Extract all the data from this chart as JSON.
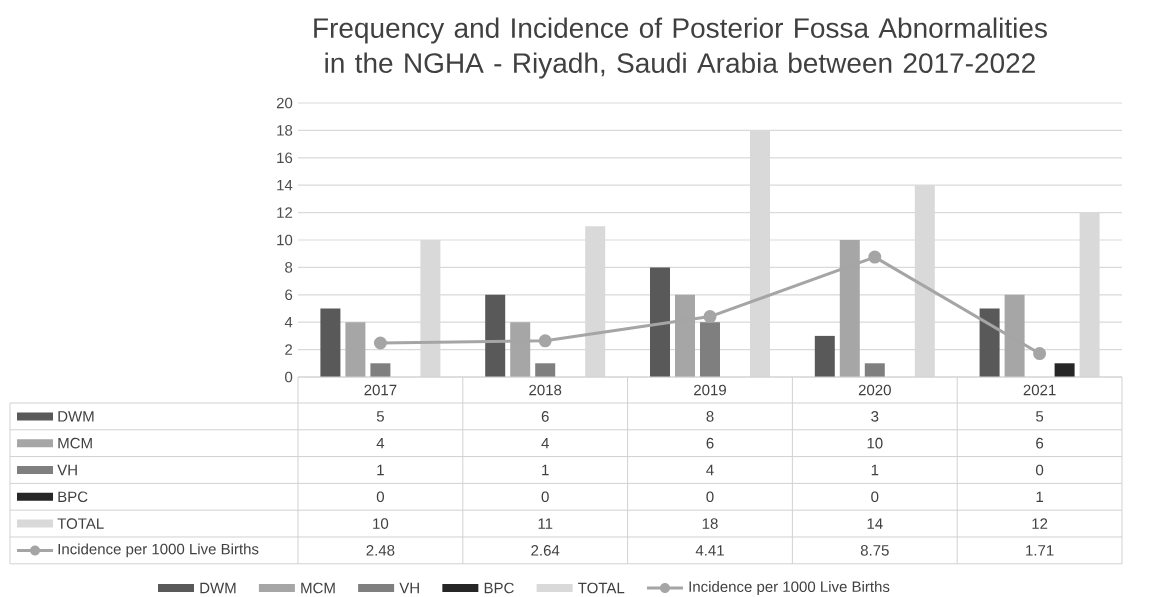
{
  "chart_data": {
    "type": "bar",
    "title": "Frequency and Incidence of Posterior Fossa Abnormalities in the NGHA - Riyadh, Saudi Arabia between 2017-2022",
    "categories": [
      "2017",
      "2018",
      "2019",
      "2020",
      "2021"
    ],
    "series": [
      {
        "name": "DWM",
        "color": "#595959",
        "values": [
          5,
          6,
          8,
          3,
          5
        ]
      },
      {
        "name": "MCM",
        "color": "#a6a6a6",
        "values": [
          4,
          4,
          6,
          10,
          6
        ]
      },
      {
        "name": "VH",
        "color": "#7f7f7f",
        "values": [
          1,
          1,
          4,
          1,
          0
        ]
      },
      {
        "name": "BPC",
        "color": "#262626",
        "values": [
          0,
          0,
          0,
          0,
          1
        ]
      },
      {
        "name": "TOTAL",
        "color": "#d9d9d9",
        "values": [
          10,
          11,
          18,
          14,
          12
        ]
      },
      {
        "name": "Incidence per 1000 Live Births",
        "type": "line",
        "marker": "circle",
        "color": "#a5a5a5",
        "values": [
          2.48,
          2.64,
          4.41,
          8.75,
          1.71
        ]
      }
    ],
    "ylim": [
      0,
      20
    ],
    "yticks": [
      0,
      2,
      4,
      6,
      8,
      10,
      12,
      14,
      16,
      18,
      20
    ],
    "grid": "y",
    "legend": "bottom",
    "data_labels": true
  }
}
